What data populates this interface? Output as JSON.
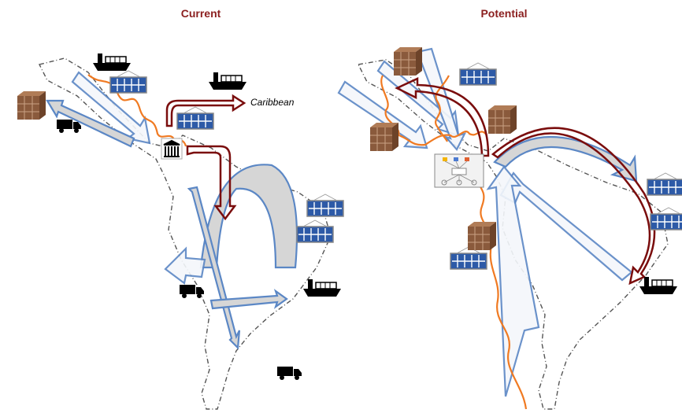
{
  "panels": [
    {
      "title": "Current",
      "annotation": "Caribbean"
    },
    {
      "title": "Potential"
    }
  ]
}
